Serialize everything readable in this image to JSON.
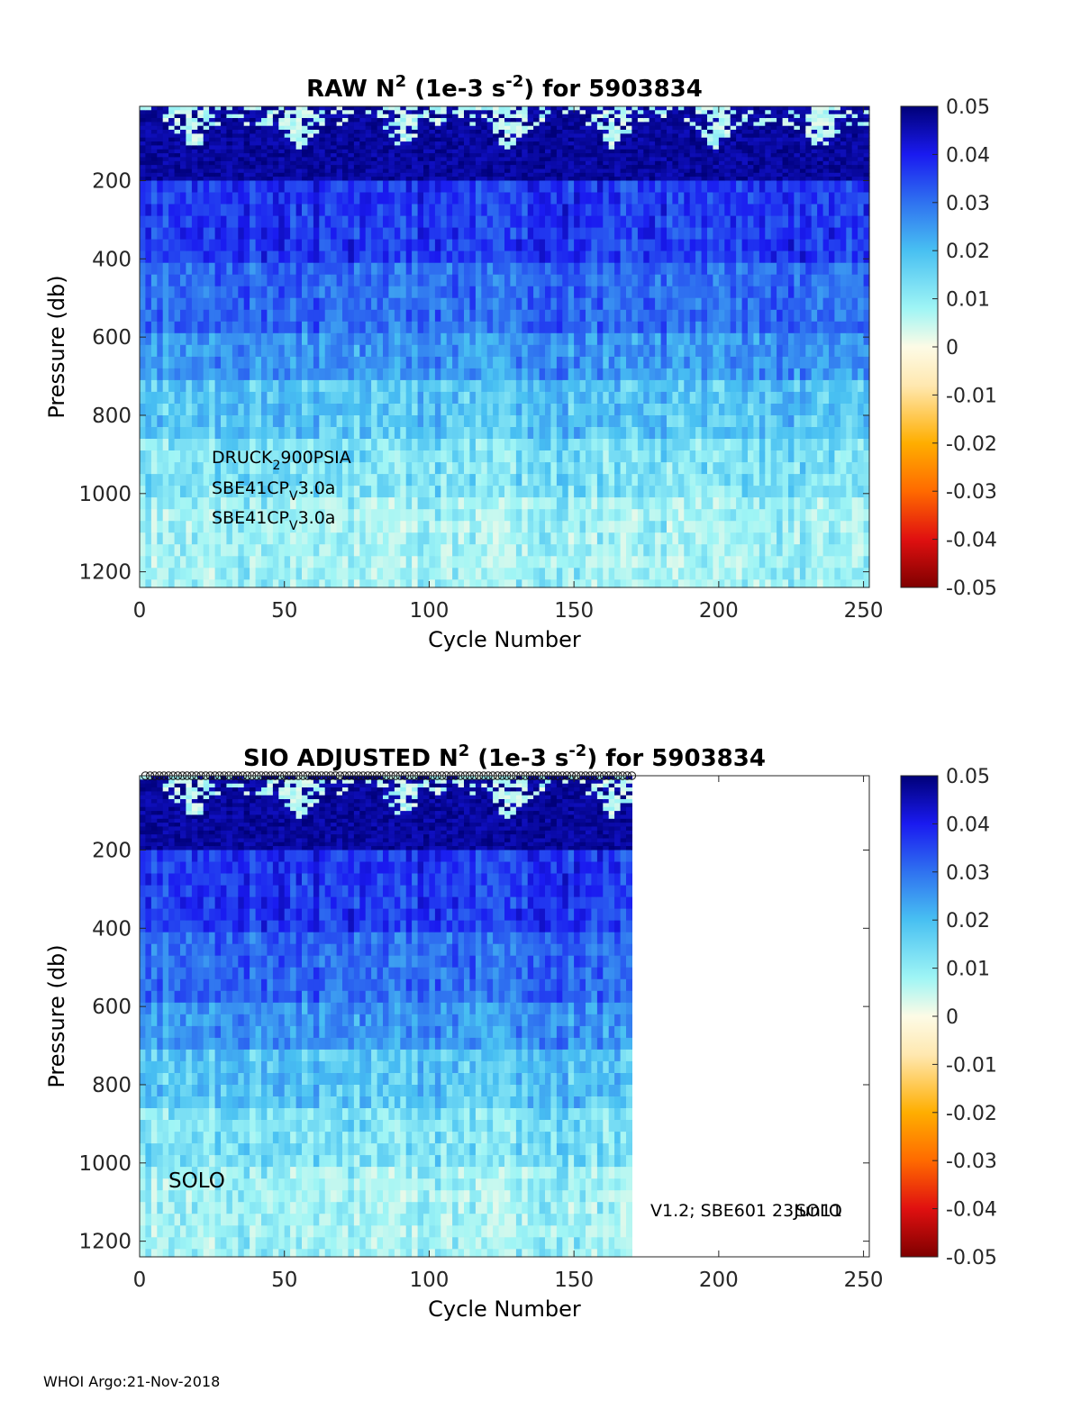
{
  "chart_data": [
    {
      "type": "heatmap",
      "title_parts": {
        "a": "RAW N",
        "a_sup": "2",
        "b": " (1e-3 s",
        "b_sup": "-2",
        "c": ") for 5903834"
      },
      "xlabel": "Cycle Number",
      "ylabel": "Pressure (db)",
      "xlim": [
        0,
        252
      ],
      "ylim": [
        1240,
        10
      ],
      "xticks": [
        0,
        50,
        100,
        150,
        200,
        250
      ],
      "yticks": [
        200,
        400,
        600,
        800,
        1000,
        1200
      ],
      "cycles_plotted": [
        0,
        252
      ],
      "colorbar": {
        "clim": [
          -0.05,
          0.05
        ],
        "ticks": [
          "0.05",
          "0.04",
          "0.03",
          "0.02",
          "0.01",
          "0",
          "-0.01",
          "-0.02",
          "-0.03",
          "-0.04",
          "-0.05"
        ],
        "colormap": "jet-diverging",
        "colors": [
          "#7f0000",
          "#e01010",
          "#ff6a00",
          "#ffae00",
          "#ffe8b0",
          "#fdfbe6",
          "#9ff5f5",
          "#48c0f2",
          "#2f72f0",
          "#1a1af0",
          "#000078"
        ]
      },
      "annotations": [
        {
          "base": "DRUCK",
          "sub": "2",
          "rest": "900PSIA"
        },
        {
          "base": "SBE41CP",
          "sub": "V",
          "rest": "3.0a"
        },
        {
          "base": "SBE41CP",
          "sub": "V",
          "rest": "3.0a"
        }
      ],
      "depth_profile_n2": [
        {
          "p": [
            10,
            200
          ],
          "value": 0.046
        },
        {
          "p": [
            200,
            400
          ],
          "value": 0.037
        },
        {
          "p": [
            400,
            600
          ],
          "value": 0.031
        },
        {
          "p": [
            600,
            700
          ],
          "value": 0.026
        },
        {
          "p": [
            700,
            850
          ],
          "value": 0.019
        },
        {
          "p": [
            850,
            1000
          ],
          "value": 0.014
        },
        {
          "p": [
            1000,
            1240
          ],
          "value": 0.01
        }
      ]
    },
    {
      "type": "heatmap",
      "title_parts": {
        "a": "SIO  ADJUSTED N",
        "a_sup": "2",
        "b": " (1e-3 s",
        "b_sup": "-2",
        "c": ") for 5903834"
      },
      "xlabel": "Cycle Number",
      "ylabel": "Pressure (db)",
      "xlim": [
        0,
        252
      ],
      "ylim": [
        1240,
        10
      ],
      "xticks": [
        0,
        50,
        100,
        150,
        200,
        250
      ],
      "yticks": [
        200,
        400,
        600,
        800,
        1000,
        1200
      ],
      "cycles_plotted": [
        0,
        170
      ],
      "colorbar": {
        "clim": [
          -0.05,
          0.05
        ],
        "ticks": [
          "0.05",
          "0.04",
          "0.03",
          "0.02",
          "0.01",
          "0",
          "-0.01",
          "-0.02",
          "-0.03",
          "-0.04",
          "-0.05"
        ]
      },
      "annotations_text": [
        "SOLO",
        "V1.2; SBE601 23Jun11",
        "SOLO"
      ]
    }
  ],
  "footer": "WHOI Argo:21-Nov-2018"
}
